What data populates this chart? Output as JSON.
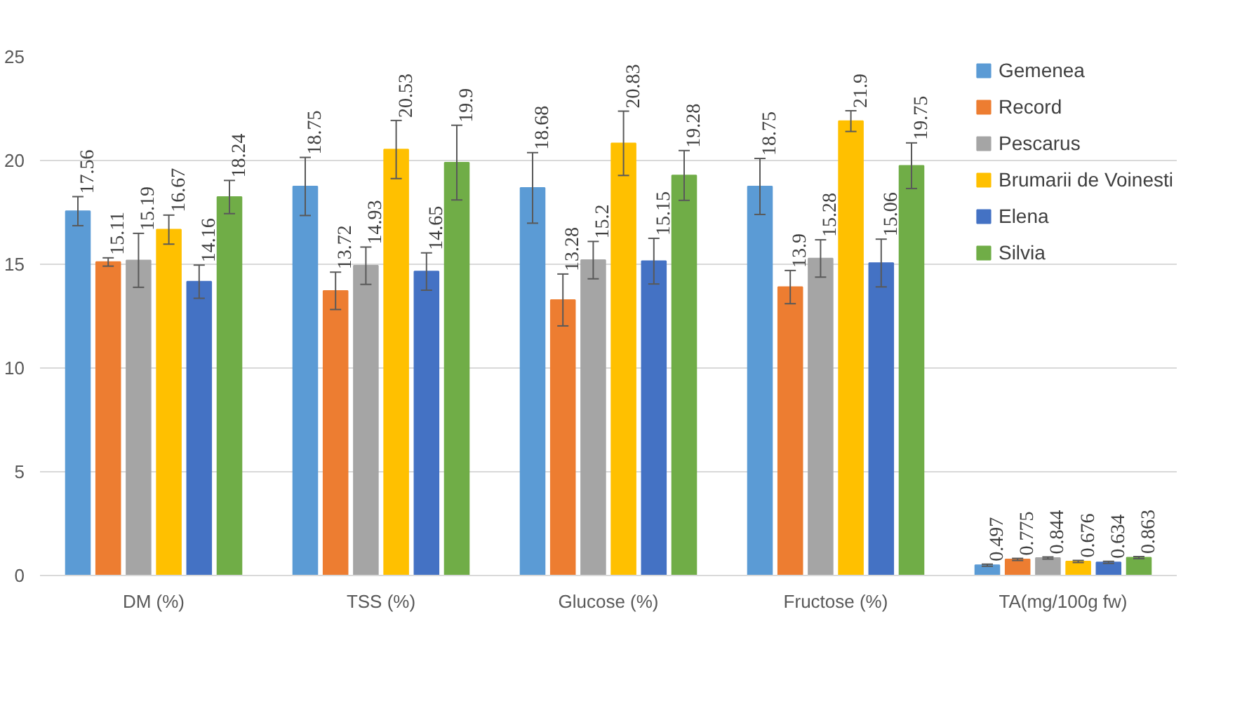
{
  "chart_data": {
    "type": "bar",
    "categories": [
      "DM (%)",
      "TSS (%)",
      "Glucose (%)",
      "Fructose (%)",
      "TA(mg/100g fw)"
    ],
    "series": [
      {
        "name": "Gemenea",
        "color": "#5b9bd5",
        "values": [
          17.56,
          18.75,
          18.68,
          18.75,
          0.497
        ],
        "errors": [
          0.7,
          1.4,
          1.7,
          1.35,
          0.05
        ]
      },
      {
        "name": "Record",
        "color": "#ed7d31",
        "values": [
          15.11,
          13.72,
          13.28,
          13.9,
          0.775
        ],
        "errors": [
          0.2,
          0.9,
          1.25,
          0.8,
          0.05
        ]
      },
      {
        "name": "Pescarus",
        "color": "#a5a5a5",
        "values": [
          15.19,
          14.93,
          15.2,
          15.28,
          0.844
        ],
        "errors": [
          1.3,
          0.9,
          0.9,
          0.9,
          0.05
        ]
      },
      {
        "name": "Brumarii de Voinesti",
        "color": "#ffc000",
        "values": [
          16.67,
          20.53,
          20.83,
          21.9,
          0.676
        ],
        "errors": [
          0.7,
          1.4,
          1.55,
          0.5,
          0.05
        ]
      },
      {
        "name": "Elena",
        "color": "#4472c4",
        "values": [
          14.16,
          14.65,
          15.15,
          15.06,
          0.634
        ],
        "errors": [
          0.8,
          0.9,
          1.1,
          1.15,
          0.05
        ]
      },
      {
        "name": "Silvia",
        "color": "#70ad47",
        "values": [
          18.24,
          19.9,
          19.28,
          19.75,
          0.863
        ],
        "errors": [
          0.8,
          1.8,
          1.2,
          1.1,
          0.05
        ]
      }
    ],
    "ylim": [
      0,
      25
    ],
    "yticks": [
      0,
      5,
      10,
      15,
      20,
      25
    ],
    "grid": "y",
    "legend": "top right",
    "data_labels": true
  }
}
